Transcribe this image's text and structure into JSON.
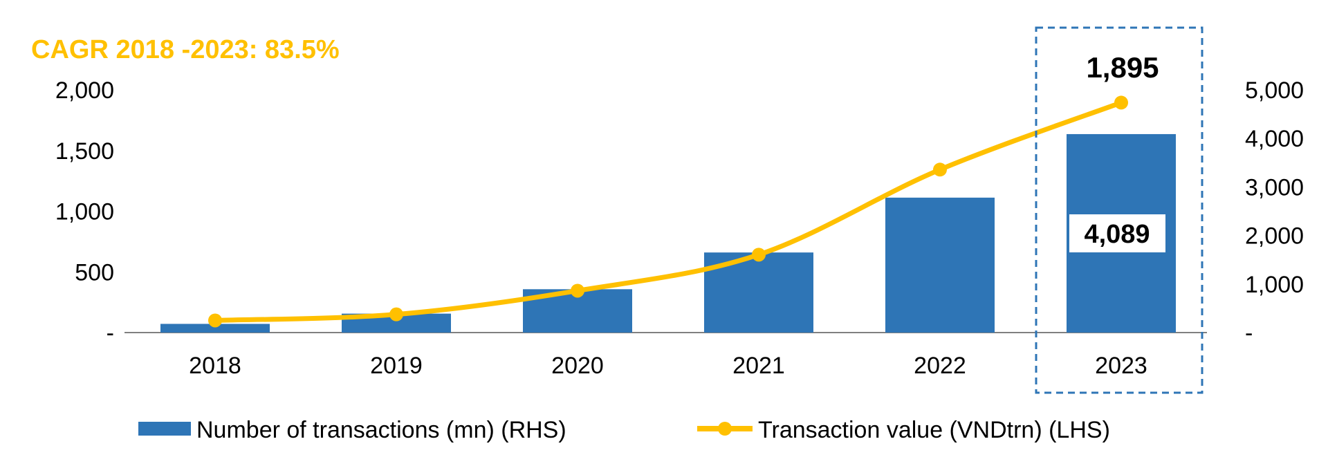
{
  "chart_data": {
    "type": "bar",
    "annotation": "CAGR 2018 -2023: 83.5%",
    "categories": [
      "2018",
      "2019",
      "2020",
      "2021",
      "2022",
      "2023"
    ],
    "series": [
      {
        "name": "Number of transactions (mn) (RHS)",
        "type": "bar",
        "axis": "right",
        "values": [
          179,
          390,
          893,
          1650,
          2780,
          4089
        ]
      },
      {
        "name": "Transaction value (VNDtrn) (LHS)",
        "type": "line",
        "axis": "left",
        "values": [
          100,
          150,
          345,
          642,
          1343,
          1895
        ]
      }
    ],
    "data_labels": {
      "bar_2023": "4,089",
      "line_2023": "1,895"
    },
    "left_axis": {
      "ylim": [
        0,
        2000
      ],
      "ticks": [
        "-",
        "500",
        "1,000",
        "1,500",
        "2,000"
      ]
    },
    "right_axis": {
      "ylim": [
        0,
        5000
      ],
      "ticks": [
        "-",
        "1,000",
        "2,000",
        "3,000",
        "4,000",
        "5,000"
      ]
    },
    "highlight": "2023",
    "grid": false,
    "legend_position": "bottom",
    "colors": {
      "bar": "#2E75B6",
      "line": "#FFC000",
      "annotation": "#FFC000",
      "highlight_box": "#2E75B6",
      "axis": "#808080"
    }
  }
}
